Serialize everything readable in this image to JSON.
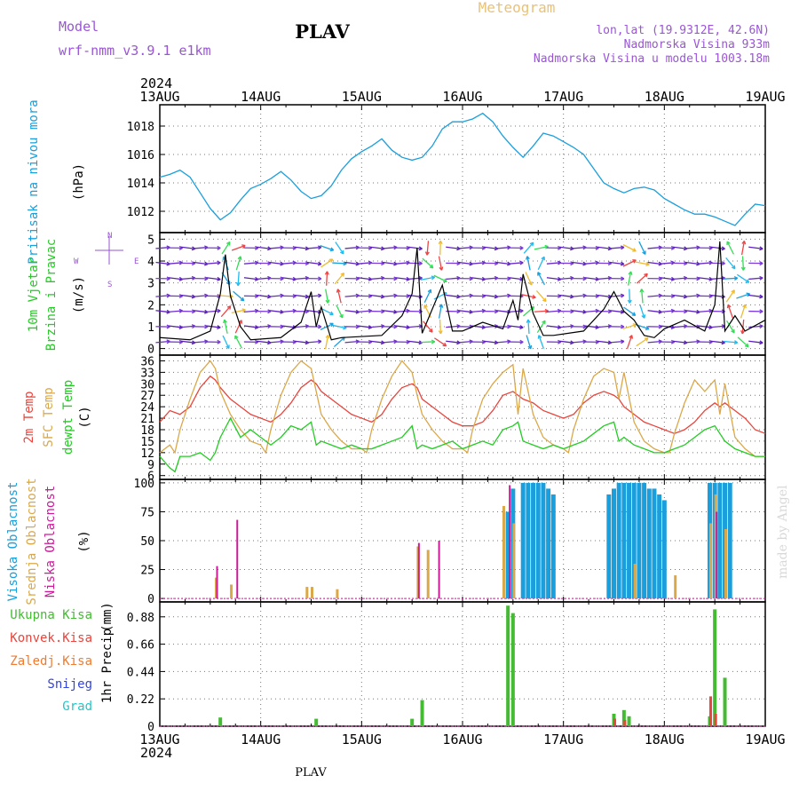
{
  "header": {
    "model_label": "Model",
    "model_name": "wrf-nmm_v3.9.1  e1km",
    "station": "PLAV",
    "meteogram": "Meteogram",
    "lonlat": "lon,lat (19.9312E, 42.6N)",
    "elev": "Nadmorska Visina 933m",
    "elev_model": "Nadmorska Visina u modelu 1003.18m",
    "year_top": "2024",
    "year_bottom": "2024",
    "footer_station": "PLAV",
    "credit": "made by Angel"
  },
  "colors": {
    "pressure": "#1a9fdc",
    "temp2m": "#e8453c",
    "sfc": "#dba849",
    "dewpt": "#22cc22",
    "high_cloud": "#1a9fdc",
    "mid_cloud": "#dba849",
    "low_cloud": "#cc1a99",
    "rain_total": "#44bb33",
    "rain_conv": "#e8453c",
    "rain_frz": "#f07b30",
    "snow": "#3344dd",
    "hail": "#22c7c7",
    "purple": "#9a55d6",
    "tan": "#e8c27a",
    "wind_line": "#000000"
  },
  "chart_data": [
    {
      "type": "line",
      "panel": "pressure",
      "ylabel": [
        "Pritisak na nivou mora",
        "(hPa)"
      ],
      "x_ticks": [
        "13AUG",
        "14AUG",
        "15AUG",
        "16AUG",
        "17AUG",
        "18AUG",
        "19AUG"
      ],
      "ylim": [
        1010.5,
        1019.5
      ],
      "y_ticks": [
        "1012",
        "1014",
        "1016",
        "1018"
      ],
      "y_tick_values": [
        1012,
        1014,
        1016,
        1018
      ],
      "series": [
        {
          "name": "",
          "x": [
            0,
            0.1,
            0.2,
            0.3,
            0.4,
            0.5,
            0.6,
            0.7,
            0.8,
            0.9,
            1.0,
            1.1,
            1.2,
            1.3,
            1.4,
            1.5,
            1.6,
            1.7,
            1.8,
            1.9,
            2.0,
            2.1,
            2.2,
            2.3,
            2.4,
            2.5,
            2.6,
            2.7,
            2.8,
            2.9,
            3.0,
            3.1,
            3.2,
            3.3,
            3.4,
            3.5,
            3.6,
            3.7,
            3.8,
            3.9,
            4.0,
            4.1,
            4.2,
            4.3,
            4.4,
            4.5,
            4.6,
            4.7,
            4.8,
            4.9,
            5.0,
            5.1,
            5.2,
            5.3,
            5.4,
            5.5,
            5.6,
            5.7,
            5.8,
            5.9,
            6.0
          ],
          "values": [
            1014.4,
            1014.6,
            1014.9,
            1014.4,
            1013.3,
            1012.2,
            1011.4,
            1011.9,
            1012.8,
            1013.6,
            1013.9,
            1014.3,
            1014.8,
            1014.2,
            1013.4,
            1012.9,
            1013.1,
            1013.8,
            1014.9,
            1015.7,
            1016.2,
            1016.6,
            1017.1,
            1016.3,
            1015.8,
            1015.6,
            1015.8,
            1016.6,
            1017.8,
            1018.3,
            1018.3,
            1018.5,
            1018.9,
            1018.3,
            1017.3,
            1016.5,
            1015.8,
            1016.6,
            1017.5,
            1017.3,
            1016.9,
            1016.5,
            1016.0,
            1015.0,
            1014.0,
            1013.6,
            1013.3,
            1013.6,
            1013.7,
            1013.5,
            1012.9,
            1012.5,
            1012.1,
            1011.8,
            1011.8,
            1011.6,
            1011.3,
            1011.0,
            1011.8,
            1012.5,
            1012.4
          ]
        }
      ]
    },
    {
      "type": "line",
      "panel": "wind",
      "ylabel": [
        "10m Vjetar",
        "Brzina i Pravac",
        "(m/s)"
      ],
      "compass": {
        "n": "N",
        "e": "E",
        "w": "W",
        "s": "S"
      },
      "ylim": [
        -0.3,
        5.3
      ],
      "y_ticks": [
        "0",
        "1",
        "2",
        "3",
        "4",
        "5"
      ],
      "y_tick_values": [
        0,
        1,
        2,
        3,
        4,
        5
      ],
      "series": [
        {
          "name": "",
          "x": [
            0,
            0.3,
            0.5,
            0.6,
            0.65,
            0.7,
            0.8,
            0.9,
            1.2,
            1.4,
            1.5,
            1.55,
            1.6,
            1.7,
            1.8,
            2.2,
            2.4,
            2.5,
            2.55,
            2.6,
            2.7,
            2.8,
            2.9,
            3.0,
            3.2,
            3.4,
            3.5,
            3.55,
            3.6,
            3.7,
            3.8,
            3.9,
            4.2,
            4.4,
            4.5,
            4.6,
            4.7,
            4.8,
            4.9,
            5.0,
            5.2,
            5.4,
            5.5,
            5.55,
            5.6,
            5.7,
            5.8,
            6.0
          ],
          "values": [
            0.5,
            0.4,
            0.8,
            2.5,
            4.3,
            2.4,
            1.0,
            0.4,
            0.5,
            1.2,
            2.6,
            1.0,
            1.9,
            0.4,
            0.5,
            0.6,
            1.5,
            2.5,
            4.6,
            0.7,
            1.8,
            2.9,
            0.8,
            0.8,
            1.2,
            0.9,
            2.2,
            1.3,
            3.4,
            1.6,
            0.6,
            0.6,
            0.8,
            1.8,
            2.6,
            1.7,
            1.3,
            0.6,
            0.5,
            0.9,
            1.3,
            0.8,
            2.0,
            4.9,
            0.8,
            1.5,
            0.8,
            1.3
          ]
        }
      ]
    },
    {
      "type": "line",
      "panel": "temperature",
      "ylabel": [
        "2m Temp",
        "SFC Temp",
        "dewpt Temp",
        "(C)"
      ],
      "ylim": [
        5,
        37.5
      ],
      "y_ticks": [
        "6",
        "9",
        "12",
        "15",
        "18",
        "21",
        "24",
        "27",
        "30",
        "33",
        "36"
      ],
      "y_tick_values": [
        6,
        9,
        12,
        15,
        18,
        21,
        24,
        27,
        30,
        33,
        36
      ],
      "series": [
        {
          "name": "2m Temp",
          "x": [
            0,
            0.1,
            0.2,
            0.3,
            0.4,
            0.5,
            0.55,
            0.6,
            0.7,
            0.8,
            0.9,
            1.0,
            1.1,
            1.2,
            1.3,
            1.4,
            1.5,
            1.55,
            1.6,
            1.7,
            1.8,
            1.9,
            2.0,
            2.1,
            2.2,
            2.3,
            2.4,
            2.5,
            2.55,
            2.6,
            2.7,
            2.8,
            2.9,
            3.0,
            3.1,
            3.2,
            3.3,
            3.4,
            3.5,
            3.55,
            3.6,
            3.7,
            3.8,
            3.9,
            4.0,
            4.1,
            4.2,
            4.3,
            4.4,
            4.5,
            4.55,
            4.6,
            4.7,
            4.8,
            4.9,
            5.0,
            5.1,
            5.2,
            5.3,
            5.4,
            5.5,
            5.55,
            5.6,
            5.7,
            5.8,
            5.9,
            6.0
          ],
          "values": [
            20,
            23,
            22,
            24,
            29,
            32,
            31,
            29,
            26,
            24,
            22,
            21,
            20,
            22,
            25,
            29,
            31,
            30,
            28,
            26,
            24,
            22,
            21,
            20,
            22,
            26,
            29,
            30,
            29,
            26,
            24,
            22,
            20,
            19,
            19,
            20,
            23,
            27,
            28,
            27,
            26,
            25,
            23,
            22,
            21,
            22,
            25,
            27,
            28,
            27,
            26,
            24,
            22,
            20,
            19,
            18,
            17,
            18,
            20,
            23,
            25,
            24,
            25,
            23,
            21,
            18,
            17
          ]
        },
        {
          "name": "SFC Temp",
          "x": [
            0,
            0.1,
            0.15,
            0.2,
            0.3,
            0.4,
            0.5,
            0.55,
            0.6,
            0.7,
            0.8,
            0.9,
            1.0,
            1.05,
            1.1,
            1.2,
            1.3,
            1.4,
            1.5,
            1.55,
            1.6,
            1.7,
            1.8,
            1.9,
            2.0,
            2.05,
            2.1,
            2.2,
            2.3,
            2.4,
            2.5,
            2.55,
            2.6,
            2.7,
            2.8,
            2.9,
            3.0,
            3.05,
            3.1,
            3.2,
            3.3,
            3.4,
            3.5,
            3.55,
            3.6,
            3.7,
            3.8,
            3.9,
            4.0,
            4.05,
            4.1,
            4.2,
            4.3,
            4.4,
            4.5,
            4.55,
            4.6,
            4.7,
            4.8,
            4.9,
            5.0,
            5.05,
            5.1,
            5.2,
            5.3,
            5.4,
            5.5,
            5.55,
            5.6,
            5.7,
            5.8,
            5.9,
            6.0
          ],
          "values": [
            12,
            14,
            12,
            18,
            26,
            33,
            36,
            34,
            28,
            22,
            18,
            15,
            14,
            12,
            18,
            27,
            33,
            36,
            34,
            28,
            22,
            18,
            15,
            13,
            13,
            12,
            18,
            26,
            32,
            36,
            33,
            27,
            22,
            18,
            15,
            13,
            13,
            12,
            18,
            26,
            30,
            33,
            35,
            22,
            34,
            22,
            16,
            14,
            13,
            12,
            18,
            26,
            32,
            34,
            33,
            26,
            33,
            20,
            15,
            13,
            12,
            12,
            17,
            25,
            31,
            28,
            31,
            22,
            30,
            16,
            13,
            11,
            11
          ]
        },
        {
          "name": "dewpt Temp",
          "x": [
            0,
            0.1,
            0.15,
            0.2,
            0.3,
            0.4,
            0.5,
            0.55,
            0.6,
            0.7,
            0.8,
            0.9,
            1.0,
            1.1,
            1.2,
            1.3,
            1.4,
            1.5,
            1.55,
            1.6,
            1.7,
            1.8,
            1.9,
            2.0,
            2.1,
            2.2,
            2.3,
            2.4,
            2.5,
            2.55,
            2.6,
            2.7,
            2.8,
            2.9,
            3.0,
            3.1,
            3.2,
            3.3,
            3.4,
            3.5,
            3.55,
            3.6,
            3.7,
            3.8,
            3.9,
            4.0,
            4.1,
            4.2,
            4.3,
            4.4,
            4.5,
            4.55,
            4.6,
            4.7,
            4.8,
            4.9,
            5.0,
            5.1,
            5.2,
            5.3,
            5.4,
            5.5,
            5.55,
            5.6,
            5.7,
            5.8,
            5.9,
            6.0
          ],
          "values": [
            11,
            8,
            7,
            11,
            11,
            12,
            10,
            12,
            16,
            21,
            16,
            18,
            16,
            14,
            16,
            19,
            18,
            20,
            14,
            15,
            14,
            13,
            14,
            13,
            13,
            14,
            15,
            16,
            19,
            13,
            14,
            13,
            14,
            15,
            13,
            14,
            15,
            14,
            18,
            19,
            20,
            15,
            14,
            13,
            14,
            13,
            14,
            15,
            17,
            19,
            20,
            15,
            16,
            14,
            13,
            12,
            12,
            13,
            14,
            16,
            18,
            19,
            17,
            15,
            13,
            12,
            11,
            11
          ]
        }
      ]
    },
    {
      "type": "bar",
      "panel": "clouds",
      "ylabel": [
        "Visoka Oblacnost",
        "Srednja Oblacnost",
        "Niska Oblacnost",
        "(%)"
      ],
      "ylim": [
        -3,
        103
      ],
      "y_ticks": [
        "0",
        "25",
        "50",
        "75",
        "100"
      ],
      "y_tick_values": [
        0,
        25,
        50,
        75,
        100
      ],
      "series": [
        {
          "name": "Visoka Oblacnost",
          "x": [
            3.45,
            3.5,
            3.6,
            3.65,
            3.7,
            3.75,
            3.8,
            3.85,
            3.9,
            4.45,
            4.5,
            4.55,
            4.6,
            4.65,
            4.7,
            4.75,
            4.8,
            4.85,
            4.9,
            4.95,
            5.0,
            5.45,
            5.5,
            5.55,
            5.6,
            5.65
          ],
          "values": [
            75,
            95,
            100,
            100,
            100,
            100,
            100,
            95,
            90,
            90,
            95,
            100,
            100,
            100,
            100,
            100,
            100,
            95,
            95,
            90,
            85,
            100,
            100,
            100,
            100,
            100
          ]
        },
        {
          "name": "Srednja Oblacnost",
          "x": [
            0.55,
            0.7,
            1.45,
            1.5,
            1.75,
            2.55,
            2.65,
            3.4,
            3.5,
            4.7,
            5.1,
            5.45,
            5.5,
            5.6
          ],
          "values": [
            18,
            12,
            10,
            10,
            8,
            45,
            42,
            80,
            65,
            30,
            20,
            65,
            90,
            60
          ]
        },
        {
          "name": "Niska Oblacnost",
          "x": [
            0.55,
            0.75,
            2.55,
            2.75,
            3.45,
            5.5
          ],
          "values": [
            28,
            68,
            48,
            50,
            98,
            75
          ]
        }
      ]
    },
    {
      "type": "bar",
      "panel": "precip",
      "ylabel": [
        "1hr Precip",
        "(mm)"
      ],
      "legend": [
        "Ukupna  Kisa",
        "Konvek.Kisa",
        "Zaledj.Kisa",
        "Snijeg",
        "Grad"
      ],
      "ylim": [
        0,
        1.0
      ],
      "y_ticks": [
        "0",
        "0.22",
        "0.44",
        "0.66",
        "0.88"
      ],
      "y_tick_values": [
        0,
        0.22,
        0.44,
        0.66,
        0.88
      ],
      "series": [
        {
          "name": "Ukupna  Kisa",
          "x": [
            0.6,
            1.55,
            2.5,
            2.6,
            3.45,
            3.5,
            4.5,
            4.6,
            4.65,
            5.45,
            5.5,
            5.6
          ],
          "values": [
            0.07,
            0.06,
            0.06,
            0.21,
            0.97,
            0.91,
            0.1,
            0.13,
            0.08,
            0.08,
            0.94,
            0.39
          ]
        },
        {
          "name": "Konvek.Kisa",
          "x": [
            4.5,
            4.6,
            5.45,
            5.5
          ],
          "values": [
            0.06,
            0.05,
            0.24,
            0.1
          ]
        }
      ]
    }
  ]
}
